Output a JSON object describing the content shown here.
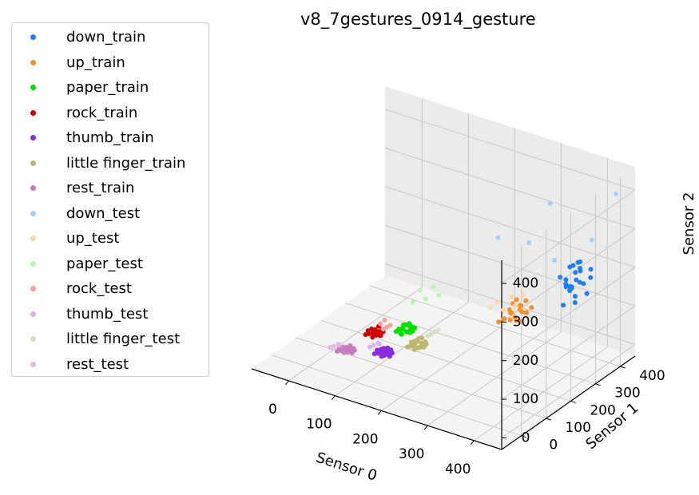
{
  "chart_data": {
    "type": "scatter",
    "projection": "3d",
    "title": "v8_7gestures_0914_gesture",
    "xlabel": "Sensor 0",
    "ylabel": "Sensor 1",
    "zlabel": "Sensor 2",
    "xticks": [
      0,
      100,
      200,
      300,
      400
    ],
    "yticks": [
      0,
      100,
      200,
      300,
      400
    ],
    "zticks": [
      0,
      100,
      200,
      300,
      400
    ],
    "xlim": [
      -80,
      460
    ],
    "ylim": [
      -80,
      460
    ],
    "zlim": [
      -30,
      460
    ],
    "grid": true,
    "legend": "outside-left",
    "series": [
      {
        "name": "down_train",
        "color": "#1f7ef5",
        "points": [
          [
            380,
            330,
            195
          ],
          [
            395,
            340,
            215
          ],
          [
            385,
            350,
            225
          ],
          [
            400,
            330,
            160
          ],
          [
            410,
            345,
            190
          ],
          [
            390,
            360,
            230
          ],
          [
            375,
            340,
            170
          ],
          [
            405,
            320,
            150
          ],
          [
            420,
            355,
            205
          ],
          [
            395,
            325,
            185
          ],
          [
            385,
            310,
            140
          ],
          [
            415,
            365,
            220
          ],
          [
            370,
            325,
            200
          ],
          [
            400,
            350,
            240
          ],
          [
            390,
            335,
            175
          ],
          [
            410,
            330,
            200
          ],
          [
            380,
            345,
            160
          ],
          [
            395,
            360,
            210
          ],
          [
            405,
            340,
            230
          ],
          [
            385,
            320,
            190
          ],
          [
            420,
            340,
            170
          ],
          [
            375,
            355,
            215
          ],
          [
            398,
            338,
            198
          ],
          [
            388,
            328,
            182
          ]
        ]
      },
      {
        "name": "up_train",
        "color": "#f5902a",
        "points": [
          [
            300,
            260,
            110
          ],
          [
            315,
            270,
            130
          ],
          [
            290,
            250,
            95
          ],
          [
            320,
            280,
            140
          ],
          [
            305,
            245,
            100
          ],
          [
            330,
            265,
            120
          ],
          [
            285,
            255,
            90
          ],
          [
            310,
            275,
            115
          ],
          [
            295,
            265,
            105
          ],
          [
            325,
            255,
            125
          ],
          [
            300,
            280,
            135
          ],
          [
            315,
            250,
            100
          ],
          [
            290,
            270,
            110
          ],
          [
            320,
            260,
            95
          ],
          [
            305,
            285,
            120
          ],
          [
            335,
            275,
            130
          ],
          [
            280,
            245,
            85
          ],
          [
            310,
            255,
            105
          ],
          [
            295,
            275,
            125
          ],
          [
            325,
            270,
            115
          ]
        ]
      },
      {
        "name": "paper_train",
        "color": "#00e000",
        "points": [
          [
            130,
            140,
            55
          ],
          [
            140,
            150,
            60
          ],
          [
            125,
            135,
            50
          ],
          [
            145,
            145,
            58
          ],
          [
            135,
            155,
            65
          ],
          [
            120,
            140,
            52
          ],
          [
            150,
            150,
            62
          ],
          [
            130,
            130,
            48
          ],
          [
            140,
            135,
            54
          ],
          [
            125,
            150,
            60
          ],
          [
            145,
            140,
            56
          ],
          [
            135,
            145,
            66
          ],
          [
            120,
            130,
            50
          ],
          [
            150,
            140,
            58
          ],
          [
            130,
            150,
            62
          ],
          [
            140,
            145,
            52
          ],
          [
            128,
            138,
            57
          ],
          [
            142,
            152,
            61
          ],
          [
            133,
            128,
            49
          ],
          [
            147,
            136,
            55
          ]
        ]
      },
      {
        "name": "rock_train",
        "color": "#cc0000",
        "points": [
          [
            80,
            110,
            40
          ],
          [
            90,
            115,
            45
          ],
          [
            75,
            105,
            38
          ],
          [
            95,
            120,
            50
          ],
          [
            85,
            100,
            35
          ],
          [
            70,
            110,
            42
          ],
          [
            100,
            115,
            48
          ],
          [
            80,
            120,
            44
          ],
          [
            90,
            105,
            40
          ],
          [
            75,
            115,
            46
          ],
          [
            95,
            110,
            39
          ],
          [
            85,
            125,
            52
          ],
          [
            70,
            100,
            36
          ],
          [
            100,
            105,
            43
          ],
          [
            82,
            112,
            41
          ]
        ]
      },
      {
        "name": "thumb_train",
        "color": "#8a2be2",
        "points": [
          [
            110,
            90,
            10
          ],
          [
            120,
            95,
            15
          ],
          [
            105,
            85,
            8
          ],
          [
            125,
            100,
            18
          ],
          [
            115,
            80,
            6
          ],
          [
            100,
            90,
            12
          ],
          [
            130,
            95,
            14
          ],
          [
            110,
            100,
            16
          ],
          [
            120,
            85,
            9
          ],
          [
            105,
            95,
            13
          ],
          [
            125,
            90,
            11
          ],
          [
            115,
            105,
            17
          ],
          [
            100,
            80,
            7
          ],
          [
            130,
            85,
            10
          ],
          [
            112,
            92,
            12
          ],
          [
            122,
            88,
            13
          ],
          [
            108,
            98,
            15
          ],
          [
            118,
            82,
            8
          ]
        ]
      },
      {
        "name": "little finger_train",
        "color": "#bdb76b",
        "points": [
          [
            160,
            130,
            30
          ],
          [
            170,
            140,
            35
          ],
          [
            155,
            125,
            28
          ],
          [
            175,
            145,
            38
          ],
          [
            165,
            120,
            25
          ],
          [
            150,
            135,
            32
          ],
          [
            180,
            140,
            36
          ],
          [
            160,
            145,
            40
          ],
          [
            170,
            125,
            29
          ],
          [
            155,
            140,
            34
          ],
          [
            175,
            130,
            31
          ],
          [
            165,
            150,
            42
          ],
          [
            150,
            120,
            26
          ],
          [
            180,
            130,
            33
          ],
          [
            162,
            138,
            37
          ],
          [
            172,
            128,
            30
          ]
        ]
      },
      {
        "name": "rest_train",
        "color": "#c77dbb",
        "points": [
          [
            45,
            60,
            5
          ],
          [
            55,
            65,
            8
          ],
          [
            40,
            55,
            3
          ],
          [
            60,
            70,
            10
          ],
          [
            50,
            50,
            4
          ],
          [
            35,
            60,
            6
          ],
          [
            65,
            65,
            9
          ],
          [
            45,
            70,
            7
          ],
          [
            55,
            55,
            5
          ],
          [
            40,
            65,
            8
          ],
          [
            60,
            60,
            6
          ],
          [
            50,
            75,
            11
          ],
          [
            35,
            50,
            2
          ],
          [
            65,
            55,
            7
          ],
          [
            48,
            62,
            6
          ]
        ]
      },
      {
        "name": "down_test",
        "color": "#a5d0fa",
        "points": [
          [
            440,
            420,
            400
          ],
          [
            330,
            360,
            360
          ],
          [
            260,
            280,
            280
          ],
          [
            420,
            360,
            300
          ],
          [
            300,
            330,
            260
          ],
          [
            350,
            340,
            230
          ]
        ]
      },
      {
        "name": "up_test",
        "color": "#fcd6a8",
        "points": [
          [
            280,
            240,
            140
          ],
          [
            300,
            260,
            150
          ],
          [
            270,
            230,
            125
          ],
          [
            310,
            255,
            135
          ],
          [
            290,
            245,
            120
          ],
          [
            320,
            270,
            160
          ]
        ]
      },
      {
        "name": "paper_test",
        "color": "#b7f5b0",
        "points": [
          [
            150,
            170,
            150
          ],
          [
            170,
            185,
            160
          ],
          [
            140,
            160,
            120
          ],
          [
            180,
            190,
            140
          ],
          [
            160,
            175,
            130
          ]
        ]
      },
      {
        "name": "rock_test",
        "color": "#f7a0a0",
        "points": [
          [
            105,
            120,
            60
          ],
          [
            95,
            130,
            70
          ],
          [
            110,
            125,
            65
          ],
          [
            100,
            115,
            55
          ],
          [
            90,
            122,
            62
          ]
        ]
      },
      {
        "name": "thumb_test",
        "color": "#dcb3f0",
        "points": [
          [
            95,
            85,
            25
          ],
          [
            105,
            90,
            30
          ],
          [
            90,
            80,
            20
          ],
          [
            100,
            95,
            28
          ]
        ]
      },
      {
        "name": "little finger_test",
        "color": "#d9e0c0",
        "points": [
          [
            185,
            150,
            60
          ],
          [
            195,
            160,
            70
          ],
          [
            180,
            145,
            55
          ],
          [
            190,
            155,
            65
          ]
        ]
      },
      {
        "name": "rest_test",
        "color": "#e6b8e0",
        "points": [
          [
            30,
            45,
            15
          ],
          [
            40,
            50,
            20
          ],
          [
            25,
            40,
            12
          ],
          [
            35,
            55,
            18
          ]
        ]
      }
    ]
  }
}
